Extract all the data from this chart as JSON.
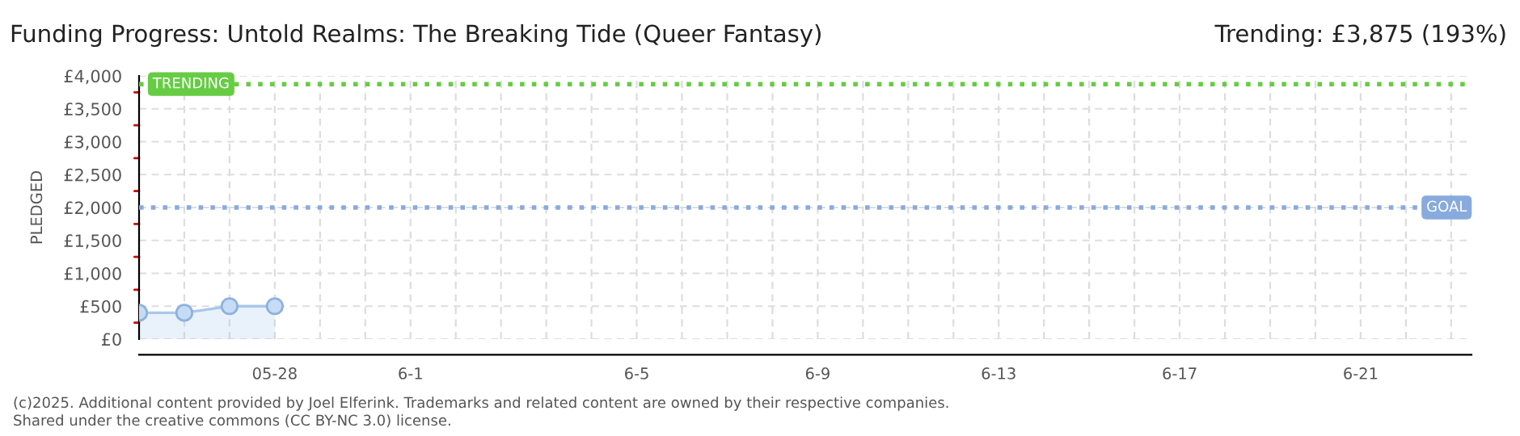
{
  "chart_data": {
    "type": "area",
    "title": "Funding Progress: Untold Realms: The Breaking Tide (Queer Fantasy)",
    "subtitle": "Trending: £3,875 (193%)",
    "ylabel": "PLEDGED",
    "categories": [
      null,
      null,
      null,
      "05-28",
      null,
      null,
      "6-1",
      null,
      null,
      null,
      null,
      "6-5",
      null,
      null,
      null,
      "6-9",
      null,
      null,
      null,
      "6-13",
      null,
      null,
      null,
      "6-17",
      null,
      null,
      null,
      "6-21",
      null,
      null
    ],
    "series": [
      {
        "color": "#a8c8ec",
        "values": [
          400,
          400,
          500,
          500,
          null,
          null,
          null,
          null,
          null,
          null,
          null,
          null,
          null,
          null,
          null,
          null,
          null,
          null,
          null,
          null,
          null,
          null,
          null,
          null,
          null,
          null,
          null,
          null,
          null,
          null
        ]
      }
    ],
    "marker": "circle",
    "ylim": [
      0,
      4000
    ],
    "yticks": [
      {
        "value": 0,
        "label": "£0"
      },
      {
        "value": 500,
        "label": "£500"
      },
      {
        "value": 1000,
        "label": "£1,000"
      },
      {
        "value": 1500,
        "label": "£1,500"
      },
      {
        "value": 2000,
        "label": "£2,000"
      },
      {
        "value": 2500,
        "label": "£2,500"
      },
      {
        "value": 3000,
        "label": "£3,000"
      },
      {
        "value": 3500,
        "label": "£3,500"
      },
      {
        "value": 4000,
        "label": "£4,000"
      }
    ],
    "grid": true,
    "ref_lines": [
      {
        "axis": "y",
        "value": 3875,
        "label": "TRENDING",
        "color": "#66cc44",
        "line_style": "dotted"
      },
      {
        "axis": "y",
        "value": 2000,
        "label": "GOAL",
        "color": "#88aadd",
        "line_style": "dotted"
      }
    ],
    "annotations": [
      "(c)2025. Additional content provided by Joel Elferink. Trademarks and related content are owned by their respective companies.",
      "Shared under the creative commons (CC BY-NC 3.0) license."
    ]
  }
}
